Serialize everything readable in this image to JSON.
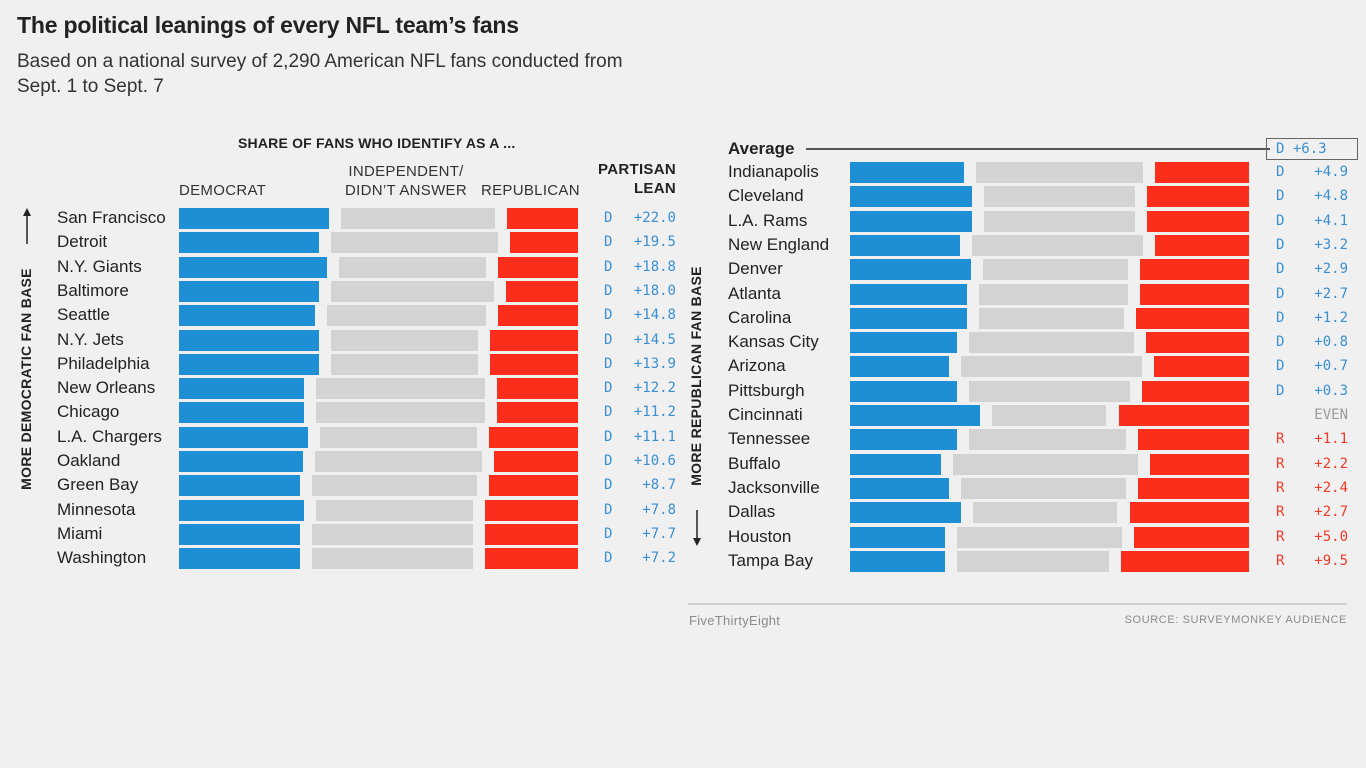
{
  "header": {
    "title": "The political leanings of every NFL team’s fans",
    "subtitle": "Based on a national survey of 2,290 American NFL fans conducted from Sept. 1 to Sept. 7"
  },
  "labels": {
    "share_header": "SHARE OF FANS WHO IDENTIFY AS A ...",
    "democrat": "DEMOCRAT",
    "independent": "INDEPENDENT/\nDIDN’T ANSWER",
    "republican": "REPUBLICAN",
    "lean_header": "PARTISAN\nLEAN",
    "more_dem": "MORE DEMOCRATIC FAN BASE",
    "more_rep": "MORE REPUBLICAN FAN BASE",
    "average": "Average"
  },
  "colors": {
    "democrat": "#1e8fd5",
    "independent": "#d3d3d3",
    "republican": "#fb2e1c"
  },
  "chart_data": {
    "type": "bar",
    "orientation": "horizontal-stacked",
    "title": "The political leanings of every NFL team’s fans",
    "series_names": [
      "Democrat",
      "Independent/Didn’t answer",
      "Republican"
    ],
    "value_units": "percent of fans (estimated from bar lengths)",
    "average": {
      "team": "Average",
      "lean": "D +6.3",
      "party": "D"
    },
    "teams": [
      {
        "team": "San Francisco",
        "dem": 38,
        "ind": 39,
        "rep": 18,
        "lean": "D +22.0",
        "party": "D"
      },
      {
        "team": "Detroit",
        "dem": 35,
        "ind": 42,
        "rep": 17,
        "lean": "D +19.5",
        "party": "D"
      },
      {
        "team": "N.Y. Giants",
        "dem": 37,
        "ind": 37,
        "rep": 20,
        "lean": "D +18.8",
        "party": "D"
      },
      {
        "team": "Baltimore",
        "dem": 35,
        "ind": 41,
        "rep": 18,
        "lean": "D +18.0",
        "party": "D"
      },
      {
        "team": "Seattle",
        "dem": 34,
        "ind": 40,
        "rep": 20,
        "lean": "D +14.8",
        "party": "D"
      },
      {
        "team": "N.Y. Jets",
        "dem": 35,
        "ind": 37,
        "rep": 22,
        "lean": "D +14.5",
        "party": "D"
      },
      {
        "team": "Philadelphia",
        "dem": 35,
        "ind": 37,
        "rep": 22,
        "lean": "D +13.9",
        "party": "D"
      },
      {
        "team": "New Orleans",
        "dem": 31,
        "ind": 42,
        "rep": 20,
        "lean": "D +12.2",
        "party": "D"
      },
      {
        "team": "Chicago",
        "dem": 31,
        "ind": 42,
        "rep": 20,
        "lean": "D +11.2",
        "party": "D"
      },
      {
        "team": "L.A. Chargers",
        "dem": 32,
        "ind": 39,
        "rep": 22,
        "lean": "D +11.1",
        "party": "D"
      },
      {
        "team": "Oakland",
        "dem": 31,
        "ind": 42,
        "rep": 21,
        "lean": "D +10.6",
        "party": "D"
      },
      {
        "team": "Green Bay",
        "dem": 30,
        "ind": 41,
        "rep": 22,
        "lean": "D +8.7",
        "party": "D"
      },
      {
        "team": "Minnesota",
        "dem": 31,
        "ind": 39,
        "rep": 23,
        "lean": "D +7.8",
        "party": "D"
      },
      {
        "team": "Miami",
        "dem": 30,
        "ind": 40,
        "rep": 23,
        "lean": "D +7.7",
        "party": "D"
      },
      {
        "team": "Washington",
        "dem": 30,
        "ind": 40,
        "rep": 23,
        "lean": "D +7.2",
        "party": "D"
      },
      {
        "team": "Indianapolis",
        "dem": 28,
        "ind": 41,
        "rep": 23,
        "lean": "D +4.9",
        "party": "D"
      },
      {
        "team": "Cleveland",
        "dem": 30,
        "ind": 37,
        "rep": 25,
        "lean": "D +4.8",
        "party": "D"
      },
      {
        "team": "L.A. Rams",
        "dem": 30,
        "ind": 37,
        "rep": 25,
        "lean": "D +4.1",
        "party": "D"
      },
      {
        "team": "New England",
        "dem": 27,
        "ind": 42,
        "rep": 23,
        "lean": "D +3.2",
        "party": "D"
      },
      {
        "team": "Denver",
        "dem": 30,
        "ind": 36,
        "rep": 27,
        "lean": "D +2.9",
        "party": "D"
      },
      {
        "team": "Atlanta",
        "dem": 29,
        "ind": 37,
        "rep": 27,
        "lean": "D +2.7",
        "party": "D"
      },
      {
        "team": "Carolina",
        "dem": 29,
        "ind": 36,
        "rep": 28,
        "lean": "D +1.2",
        "party": "D"
      },
      {
        "team": "Kansas City",
        "dem": 26,
        "ind": 40,
        "rep": 25,
        "lean": "D +0.8",
        "party": "D"
      },
      {
        "team": "Arizona",
        "dem": 24,
        "ind": 44,
        "rep": 23,
        "lean": "D +0.7",
        "party": "D"
      },
      {
        "team": "Pittsburgh",
        "dem": 26,
        "ind": 39,
        "rep": 26,
        "lean": "D +0.3",
        "party": "D"
      },
      {
        "team": "Cincinnati",
        "dem": 32,
        "ind": 28,
        "rep": 32,
        "lean": "EVEN",
        "party": "EVEN"
      },
      {
        "team": "Tennessee",
        "dem": 26,
        "ind": 38,
        "rep": 27,
        "lean": "R +1.1",
        "party": "R"
      },
      {
        "team": "Buffalo",
        "dem": 22,
        "ind": 45,
        "rep": 24,
        "lean": "R +2.2",
        "party": "R"
      },
      {
        "team": "Jacksonville",
        "dem": 24,
        "ind": 40,
        "rep": 27,
        "lean": "R +2.4",
        "party": "R"
      },
      {
        "team": "Dallas",
        "dem": 27,
        "ind": 35,
        "rep": 29,
        "lean": "R +2.7",
        "party": "R"
      },
      {
        "team": "Houston",
        "dem": 23,
        "ind": 40,
        "rep": 28,
        "lean": "R +5.0",
        "party": "R"
      },
      {
        "team": "Tampa Bay",
        "dem": 23,
        "ind": 37,
        "rep": 31,
        "lean": "R +9.5",
        "party": "R"
      }
    ]
  },
  "footer": {
    "brand": "FiveThirtyEight",
    "source": "SOURCE: SURVEYMONKEY AUDIENCE"
  }
}
